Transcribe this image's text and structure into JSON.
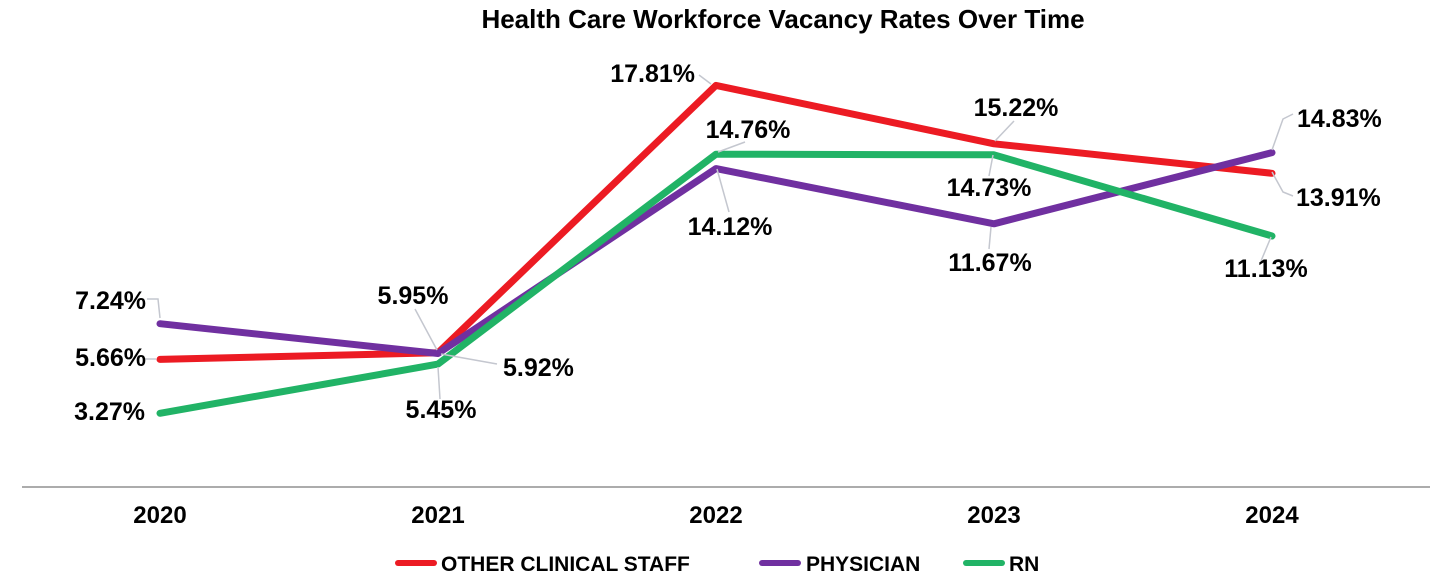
{
  "chart_data": {
    "type": "line",
    "title": "Health Care Workforce Vacancy Rates Over Time",
    "categories": [
      "2020",
      "2021",
      "2022",
      "2023",
      "2024"
    ],
    "series": [
      {
        "name": "OTHER CLINICAL STAFF",
        "color": "#EC1B23",
        "values": [
          5.66,
          5.95,
          17.81,
          15.22,
          13.91
        ],
        "labels": [
          "5.66%",
          "5.95%",
          "17.81%",
          "15.22%",
          "13.91%"
        ]
      },
      {
        "name": "PHYSICIAN",
        "color": "#7030A0",
        "values": [
          7.24,
          5.92,
          14.12,
          11.67,
          14.83
        ],
        "labels": [
          "7.24%",
          "5.92%",
          "14.12%",
          "11.67%",
          "14.83%"
        ]
      },
      {
        "name": "RN",
        "color": "#21B366",
        "values": [
          3.27,
          5.45,
          14.76,
          14.73,
          11.13
        ],
        "labels": [
          "3.27%",
          "5.45%",
          "14.76%",
          "14.73%",
          "11.13%"
        ]
      }
    ],
    "xlabel": "",
    "ylabel": "",
    "ylim": [
      0,
      21.6
    ],
    "grid": false,
    "y_axis_shown": false,
    "legend_position": "bottom",
    "colors": {
      "axis_line": "#ACACAC",
      "leader_line": "#C4C7CF",
      "text": "#000000",
      "background": "#FFFFFF"
    }
  }
}
